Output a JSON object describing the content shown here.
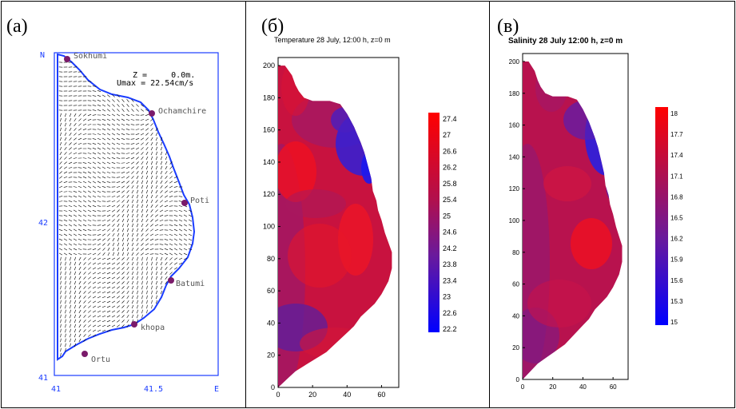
{
  "panels": {
    "a": {
      "label": "(a)",
      "north": "N",
      "east": "E",
      "lat_ticks": [
        "42",
        "41"
      ],
      "lon_ticks": [
        "41",
        "41.5"
      ],
      "info_z": "Z =     0.0m.",
      "info_umax": "Umax = 22.54cm/s",
      "cities": [
        "Sokhumi",
        "Ochamchire",
        "Poti",
        "Batumi",
        "khopa",
        "Ortu"
      ],
      "city_color": "#7a1a6a",
      "coast_color": "#1a3cff"
    },
    "b": {
      "label": "(б)",
      "title": "Temperature 28 July, 12:00 h, z=0 m",
      "colorbar": [
        "27.4",
        "27",
        "26.6",
        "26.2",
        "25.8",
        "25.4",
        "25",
        "24.6",
        "24.2",
        "23.8",
        "23.4",
        "23",
        "22.6",
        "22.2"
      ]
    },
    "c": {
      "label": "(в)",
      "title": "Salinity 28 July 12:00 h, z=0 m",
      "colorbar": [
        "18",
        "17.7",
        "17.4",
        "17.1",
        "16.8",
        "16.5",
        "16.2",
        "15.9",
        "15.6",
        "15.3",
        "15"
      ]
    }
  },
  "axes": {
    "y_ticks": [
      "200",
      "180",
      "160",
      "140",
      "120",
      "100",
      "80",
      "60",
      "40",
      "20",
      "0"
    ],
    "x_ticks": [
      "0",
      "20",
      "40",
      "60"
    ]
  },
  "chart_data": {
    "type": "heatmap",
    "xlim": [
      0,
      70
    ],
    "ylim": [
      0,
      200
    ],
    "series": [
      {
        "name": "Temperature 28 July, 12:00 h, z=0 m",
        "range": [
          22.2,
          27.4
        ],
        "colors": [
          "#0000ff",
          "#ff0000"
        ]
      },
      {
        "name": "Salinity 28 July 12:00 h, z=0 m",
        "range": [
          15,
          18
        ],
        "colors": [
          "#0000ff",
          "#ff0000"
        ]
      }
    ]
  }
}
